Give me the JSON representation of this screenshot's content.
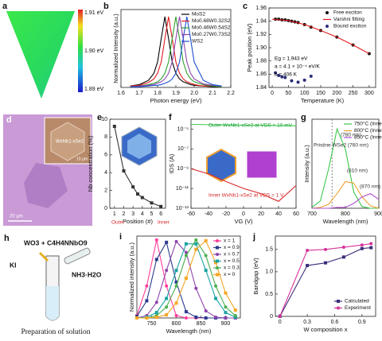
{
  "images": [
    {
      "panel": "a",
      "colorbar_labels": [
        "1.91 eV",
        "1.90 eV",
        "1.89 eV"
      ]
    },
    {
      "panel": "d",
      "texts": [
        "WxNb1-xSe2",
        "10 µm",
        "20 µm"
      ]
    },
    {
      "panel": "h",
      "texts": [
        "WO3 + C4H4NNbO9",
        "KI",
        "NH3·H2O",
        "Preparation of solution"
      ]
    }
  ],
  "chart_data": [
    {
      "type": "line",
      "panel": "b",
      "xlabel": "Photon energy (eV)",
      "ylabel": "Normalized Intensity (a.u.)",
      "xlim": [
        1.6,
        2.2
      ],
      "xticks": [
        1.6,
        1.7,
        1.8,
        1.9,
        {
          "value": 2,
          "label": "2.0"
        },
        2.1,
        2.2
      ],
      "ylim": [
        0,
        1.1
      ],
      "yticks": [],
      "legend": "upper right",
      "x": [
        1.65,
        1.7,
        1.75,
        1.78,
        1.8,
        1.82,
        1.84,
        1.86,
        1.88,
        1.9,
        1.92,
        1.94,
        1.96,
        1.98,
        2.0,
        2.05,
        2.1,
        2.15
      ],
      "series": [
        {
          "name": "MoS2",
          "color": "#000000",
          "style": "line",
          "values": [
            0.02,
            0.04,
            0.1,
            0.2,
            0.36,
            0.69,
            1,
            0.69,
            0.36,
            0.2,
            0.12,
            0.08,
            0.06,
            0.04,
            0.03,
            0.02,
            0.01,
            0.01
          ]
        },
        {
          "name": "Mo0.68W0.32S2",
          "color": "#e41a1c",
          "style": "line",
          "values": [
            0.02,
            0.03,
            0.07,
            0.12,
            0.2,
            0.36,
            0.69,
            1,
            0.69,
            0.36,
            0.2,
            0.12,
            0.08,
            0.06,
            0.04,
            0.02,
            0.02,
            0.01
          ]
        },
        {
          "name": "Mo0.46W0.54S2",
          "color": "#2ca02c",
          "style": "line",
          "values": [
            0.01,
            0.02,
            0.04,
            0.06,
            0.08,
            0.12,
            0.2,
            0.36,
            0.69,
            1,
            0.69,
            0.36,
            0.2,
            0.12,
            0.08,
            0.04,
            0.02,
            0.01
          ]
        },
        {
          "name": "Mo0.27W0.73S2",
          "color": "#8e44ad",
          "style": "line",
          "values": [
            0.01,
            0.02,
            0.03,
            0.04,
            0.06,
            0.08,
            0.12,
            0.2,
            0.36,
            0.69,
            1,
            0.69,
            0.36,
            0.2,
            0.12,
            0.05,
            0.03,
            0.02
          ]
        },
        {
          "name": "WS2",
          "color": "#1f4fd1",
          "style": "line",
          "values": [
            0.01,
            0.01,
            0.02,
            0.03,
            0.03,
            0.04,
            0.06,
            0.08,
            0.12,
            0.2,
            0.36,
            0.69,
            1,
            0.69,
            0.36,
            0.1,
            0.04,
            0.02
          ]
        }
      ]
    },
    {
      "type": "scatter",
      "panel": "c",
      "xlabel": "Temperature (K)",
      "ylabel": "Peak position (eV)",
      "xlim": [
        -10,
        320
      ],
      "xticks": [
        0,
        50,
        100,
        150,
        200,
        250,
        300
      ],
      "ylim": [
        1.84,
        1.96
      ],
      "yticks": [
        1.84,
        1.86,
        1.88,
        {
          "value": 1.9,
          "label": "1.90"
        },
        1.92,
        1.94,
        1.96
      ],
      "legend": "upper right",
      "annotations": [
        {
          "text": "Eg = 1.943 eV",
          "color": "#000000"
        },
        {
          "text": "a = 4.1 × 10⁻⁴ eV/K",
          "color": "#000000"
        },
        {
          "text": "b = 406 K",
          "color": "#000000"
        }
      ],
      "series": [
        {
          "name": "Free exciton",
          "color": "#111111",
          "style": "markers",
          "marker": "circle",
          "x": [
            10,
            20,
            30,
            40,
            50,
            60,
            70,
            80,
            100,
            120,
            150,
            200,
            250,
            300
          ],
          "values": [
            1.943,
            1.943,
            1.942,
            1.942,
            1.941,
            1.94,
            1.939,
            1.938,
            1.935,
            1.931,
            1.926,
            1.916,
            1.904,
            1.891
          ]
        },
        {
          "name": "Varshni fitting",
          "color": "#e41a1c",
          "style": "line",
          "x": [
            0,
            50,
            100,
            150,
            200,
            250,
            300
          ],
          "values": [
            1.943,
            1.941,
            1.935,
            1.926,
            1.916,
            1.904,
            1.891
          ]
        },
        {
          "name": "Bound exciton",
          "color": "#2b2d7a",
          "style": "markers",
          "marker": "circle",
          "x": [
            10,
            20,
            30,
            40,
            60,
            80,
            100,
            120
          ],
          "values": [
            1.862,
            1.858,
            1.856,
            1.855,
            1.85,
            1.848,
            1.851,
            1.857
          ]
        }
      ]
    },
    {
      "type": "line",
      "panel": "e",
      "xlabel": "Position (#)",
      "ylabel": "Nb concentration (%)",
      "xlim": [
        0.5,
        6.5
      ],
      "xticks": [
        1,
        2,
        3,
        4,
        5,
        6
      ],
      "ylim": [
        0,
        10
      ],
      "yticks": [
        0,
        2,
        4,
        6,
        8,
        10
      ],
      "annotations": [
        {
          "text": "Outer",
          "color": "#d62728"
        },
        {
          "text": "Inner",
          "color": "#d62728"
        }
      ],
      "series": [
        {
          "color": "#333333",
          "style": "line+markers",
          "marker": "square",
          "x": [
            1,
            2,
            3,
            3.5,
            4,
            5,
            6
          ],
          "values": [
            9.2,
            4.2,
            2.4,
            1.6,
            1.2,
            0.6,
            0.2
          ]
        }
      ]
    },
    {
      "type": "line",
      "panel": "f",
      "xlabel": "VG (V)",
      "ylabel": "IDS (A)",
      "ylog": true,
      "xlim": [
        -60,
        60
      ],
      "xticks": [
        -60,
        -40,
        -20,
        0,
        20,
        40,
        60
      ],
      "ylim": [
        1e-13,
        0.0001
      ],
      "yticks": [
        {
          "value": 1e-13,
          "label": "10⁻¹³"
        },
        {
          "value": 1e-11,
          "label": "10⁻¹¹"
        },
        {
          "value": 1e-09,
          "label": "10⁻⁹"
        },
        {
          "value": 1e-07,
          "label": "10⁻⁷"
        },
        {
          "value": 1e-05,
          "label": "10⁻⁵"
        }
      ],
      "annotations": [
        {
          "text": "Outer WxNb1-xSe2 at VDS = 10 mV",
          "color": "#1a9e3a"
        },
        {
          "text": "Inner WxNb1-xSe2 at VDS = 1 V",
          "color": "#d62728"
        }
      ],
      "x": [
        -60,
        -40,
        -20,
        0,
        20,
        40,
        60
      ],
      "series": [
        {
          "color": "#3cc94a",
          "style": "line",
          "values": [
            3e-05,
            2.8e-05,
            2.6e-05,
            2.5e-05,
            2.4e-05,
            2.3e-05,
            2.2e-05
          ]
        },
        {
          "color": "#d62728",
          "style": "line",
          "values": [
            1e-09,
            3e-10,
            5e-11,
            1e-11,
            3e-12,
            5e-13,
            2e-11
          ]
        }
      ]
    },
    {
      "type": "line",
      "panel": "g",
      "xlabel": "Wavelength (nm)",
      "ylabel": "Intensity (a.u.)",
      "xlim": [
        700,
        900
      ],
      "xticks": [
        700,
        800,
        900
      ],
      "ylim": [
        0,
        1.1
      ],
      "yticks": [],
      "legend": "upper right",
      "vline": 760,
      "annotations": [
        {
          "text": "Pristine WSe2 (760 nm)",
          "color": "#333333"
        },
        {
          "text": "(780 nm)",
          "color": "#333333"
        },
        {
          "text": "(810 nm)",
          "color": "#333333"
        },
        {
          "text": "(870 nm)",
          "color": "#333333"
        }
      ],
      "x": [
        700,
        725,
        750,
        775,
        800,
        825,
        850,
        875,
        900
      ],
      "series": [
        {
          "name": "750°C (Inner)",
          "color": "#3cc94a",
          "style": "line",
          "values": [
            0.01,
            0.09,
            0.49,
            0.98,
            0.73,
            0.2,
            0.02,
            0,
            0
          ]
        },
        {
          "name": "800°C (Inner)",
          "color": "#f0a030",
          "style": "line",
          "values": [
            0,
            0.01,
            0.05,
            0.18,
            0.33,
            0.31,
            0.14,
            0.03,
            0
          ]
        },
        {
          "name": "850°C (Inner)",
          "color": "#b04fd0",
          "style": "line",
          "values": [
            0,
            0,
            0,
            0.01,
            0.01,
            0.06,
            0.14,
            0.18,
            0.11
          ]
        }
      ]
    },
    {
      "type": "line",
      "panel": "i",
      "xlabel": "Wavelength (nm)",
      "ylabel": "Normalized intensity (a.u.)",
      "xlim": [
        720,
        930
      ],
      "xticks": [
        750,
        800,
        850,
        900
      ],
      "ylim": [
        0,
        1.05
      ],
      "yticks": [],
      "legend": "upper right",
      "x": [
        720,
        740,
        760,
        780,
        800,
        820,
        840,
        860,
        880,
        900,
        920
      ],
      "series": [
        {
          "name": "x = 1",
          "color": "#ff3e9a",
          "style": "line+markers",
          "marker": "circle",
          "values": [
            0.03,
            0.41,
            1,
            0.41,
            0.03,
            0,
            0,
            0,
            0,
            0,
            0
          ]
        },
        {
          "name": "x = 0.9",
          "color": "#2b3a8c",
          "style": "line+markers",
          "marker": "square",
          "values": [
            0.02,
            0.22,
            0.75,
            0.97,
            0.46,
            0.08,
            0.01,
            0,
            0,
            0,
            0
          ]
        },
        {
          "name": "x = 0.7",
          "color": "#8e44ad",
          "style": "line+markers",
          "marker": "circle",
          "values": [
            0,
            0.03,
            0.2,
            0.61,
            0.98,
            0.84,
            0.38,
            0.09,
            0.01,
            0,
            0
          ]
        },
        {
          "name": "x = 0.5",
          "color": "#1aa3a3",
          "style": "line+markers",
          "marker": "square",
          "values": [
            0,
            0.01,
            0.07,
            0.25,
            0.61,
            0.95,
            0.95,
            0.61,
            0.25,
            0.07,
            0.01
          ]
        },
        {
          "name": "x = 0.3",
          "color": "#4caf50",
          "style": "line+markers",
          "marker": "circle",
          "values": [
            0,
            0,
            0.03,
            0.14,
            0.41,
            0.8,
            1,
            0.8,
            0.41,
            0.14,
            0.03
          ]
        },
        {
          "name": "x = 0",
          "color": "#f5a623",
          "style": "line+markers",
          "marker": "square",
          "values": [
            0,
            0,
            0.01,
            0.04,
            0.19,
            0.51,
            0.88,
            0.99,
            0.71,
            0.32,
            0.1
          ]
        }
      ]
    },
    {
      "type": "line",
      "panel": "j",
      "xlabel": "W composition x",
      "ylabel": "Bandgap (eV)",
      "xlim": [
        -0.05,
        1.05
      ],
      "xticks": [
        0,
        0.3,
        0.6,
        0.9
      ],
      "ylim": [
        0,
        1.8
      ],
      "yticks": [
        0,
        0.5,
        {
          "value": 1,
          "label": "1.0"
        },
        1.5
      ],
      "legend": "lower right",
      "x": [
        0,
        0.3,
        0.5,
        0.7,
        0.9,
        1
      ],
      "series": [
        {
          "name": "Calculated",
          "color": "#3b2f7a",
          "style": "line+markers",
          "marker": "square",
          "values": [
            0,
            1.14,
            1.2,
            1.33,
            1.52,
            1.54
          ]
        },
        {
          "name": "Experiment",
          "color": "#d6339a",
          "style": "line+markers",
          "marker": "circle",
          "values": [
            0,
            1.48,
            1.5,
            1.55,
            1.6,
            1.63
          ]
        }
      ]
    }
  ]
}
